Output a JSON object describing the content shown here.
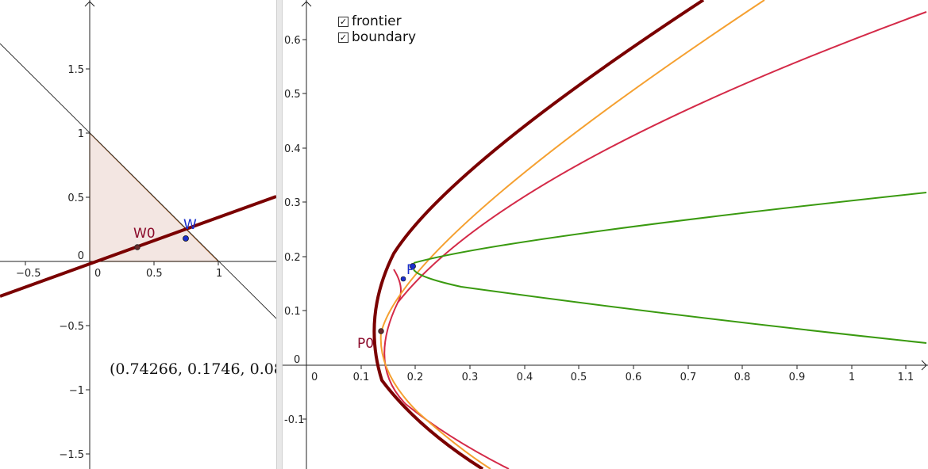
{
  "left_view": {
    "x_ticks": [
      "−0.5",
      "0",
      "0.5",
      "1"
    ],
    "y_ticks": [
      "1.5",
      "1",
      "0.5",
      "0",
      "−0.5",
      "−1",
      "−1.5"
    ],
    "point_W": {
      "label": "W",
      "x": 0.74266,
      "y": 0.1746
    },
    "point_W0": {
      "label": "W0",
      "x": 0.37,
      "y": 0.1
    },
    "coord_text": "(0.74266, 0.1746, 0.08",
    "colors": {
      "line": "#7a0000",
      "simplex_fill": "#f3e6e2",
      "simplex_edge": "#c87a3c",
      "point_w": "#1a2fcc",
      "label_w0": "#8b0a2a"
    }
  },
  "right_view": {
    "legend": [
      {
        "label": "frontier",
        "checked": true
      },
      {
        "label": "boundary",
        "checked": true
      }
    ],
    "x_ticks": [
      "0",
      "0.1",
      "0.2",
      "0.3",
      "0.4",
      "0.5",
      "0.6",
      "0.7",
      "0.8",
      "0.9",
      "1",
      "1.1"
    ],
    "y_ticks": [
      "0.6",
      "0.5",
      "0.4",
      "0.3",
      "0.2",
      "0.1",
      "0",
      "-0.1"
    ],
    "point_P": {
      "label": "P"
    },
    "point_P0": {
      "label": "P0"
    },
    "colors": {
      "frontier": "#7a0000",
      "orange": "#f5a030",
      "crimson": "#d42a48",
      "green": "#3a9a10",
      "point_p": "#1a2fcc",
      "label_p0": "#8b0a2a"
    }
  }
}
